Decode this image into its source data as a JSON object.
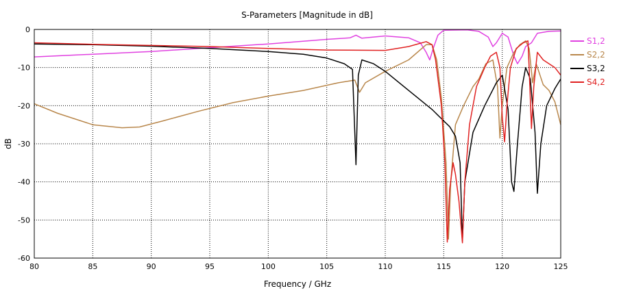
{
  "chart_data": {
    "type": "line",
    "title": "S-Parameters [Magnitude in dB]",
    "xlabel": "Frequency / GHz",
    "ylabel": "dB",
    "xlim": [
      80,
      125
    ],
    "ylim": [
      -60,
      0
    ],
    "xticks": [
      80,
      85,
      90,
      95,
      100,
      105,
      110,
      115,
      120,
      125
    ],
    "yticks": [
      0,
      -10,
      -20,
      -30,
      -40,
      -50,
      -60
    ],
    "grid": true,
    "legend_position": "right",
    "series": [
      {
        "name": "S1,2",
        "color": "#e040e0",
        "points": [
          [
            80,
            -7.2
          ],
          [
            85,
            -6.5
          ],
          [
            90,
            -5.8
          ],
          [
            95,
            -4.8
          ],
          [
            100,
            -3.8
          ],
          [
            105,
            -2.6
          ],
          [
            107,
            -2.2
          ],
          [
            107.5,
            -1.5
          ],
          [
            108,
            -2.3
          ],
          [
            110,
            -1.7
          ],
          [
            112,
            -2.2
          ],
          [
            113,
            -3.5
          ],
          [
            113.5,
            -6
          ],
          [
            113.8,
            -8
          ],
          [
            114.1,
            -5
          ],
          [
            114.5,
            -1.5
          ],
          [
            115,
            -0.2
          ],
          [
            117,
            -0.1
          ],
          [
            118,
            -0.5
          ],
          [
            118.8,
            -2
          ],
          [
            119.2,
            -4.5
          ],
          [
            119.5,
            -3.5
          ],
          [
            120,
            -1
          ],
          [
            120.5,
            -2
          ],
          [
            121,
            -7
          ],
          [
            121.3,
            -9
          ],
          [
            121.7,
            -7
          ],
          [
            122,
            -4.5
          ],
          [
            122.5,
            -3.5
          ],
          [
            123,
            -1
          ],
          [
            124,
            -0.5
          ],
          [
            125,
            -0.4
          ]
        ]
      },
      {
        "name": "S2,2",
        "color": "#b8864a",
        "points": [
          [
            80,
            -19.5
          ],
          [
            82,
            -22
          ],
          [
            85,
            -25
          ],
          [
            87.5,
            -25.8
          ],
          [
            89,
            -25.6
          ],
          [
            91,
            -24
          ],
          [
            94,
            -21.5
          ],
          [
            97,
            -19.2
          ],
          [
            100,
            -17.5
          ],
          [
            103,
            -16
          ],
          [
            106,
            -14
          ],
          [
            107.4,
            -13.3
          ],
          [
            107.8,
            -16.5
          ],
          [
            108.3,
            -14
          ],
          [
            110,
            -11
          ],
          [
            112,
            -8
          ],
          [
            113.5,
            -4
          ],
          [
            114,
            -4
          ],
          [
            114.4,
            -8
          ],
          [
            114.8,
            -18
          ],
          [
            115.2,
            -35
          ],
          [
            115.4,
            -55
          ],
          [
            115.6,
            -40
          ],
          [
            116,
            -25
          ],
          [
            116.7,
            -20
          ],
          [
            117.5,
            -15
          ],
          [
            118,
            -13
          ],
          [
            118.6,
            -9
          ],
          [
            119.2,
            -8
          ],
          [
            119.6,
            -15
          ],
          [
            119.8,
            -28.5
          ],
          [
            120,
            -20
          ],
          [
            120.4,
            -10
          ],
          [
            121,
            -6
          ],
          [
            121.5,
            -4
          ],
          [
            122,
            -3
          ],
          [
            122.3,
            -5
          ],
          [
            122.6,
            -14
          ],
          [
            122.9,
            -9
          ],
          [
            123.5,
            -14.5
          ],
          [
            124,
            -16
          ],
          [
            124.5,
            -19
          ],
          [
            125,
            -25
          ]
        ]
      },
      {
        "name": "S3,2",
        "color": "#000000",
        "points": [
          [
            80,
            -3.8
          ],
          [
            85,
            -4
          ],
          [
            90,
            -4.4
          ],
          [
            95,
            -5
          ],
          [
            100,
            -5.8
          ],
          [
            103,
            -6.5
          ],
          [
            105,
            -7.5
          ],
          [
            106.5,
            -9
          ],
          [
            107.2,
            -10.5
          ],
          [
            107.5,
            -35.5
          ],
          [
            107.7,
            -12
          ],
          [
            108,
            -8
          ],
          [
            109,
            -9
          ],
          [
            110,
            -11
          ],
          [
            112,
            -16
          ],
          [
            114,
            -21
          ],
          [
            115,
            -24
          ],
          [
            115.5,
            -25.5
          ],
          [
            116,
            -28
          ],
          [
            116.4,
            -35
          ],
          [
            116.6,
            -55.5
          ],
          [
            116.8,
            -40
          ],
          [
            117.5,
            -27
          ],
          [
            118.5,
            -20
          ],
          [
            119.5,
            -14
          ],
          [
            120,
            -12
          ],
          [
            120.5,
            -21
          ],
          [
            120.8,
            -40
          ],
          [
            121,
            -42.5
          ],
          [
            121.3,
            -30
          ],
          [
            121.7,
            -15
          ],
          [
            122,
            -10
          ],
          [
            122.4,
            -13
          ],
          [
            122.8,
            -27
          ],
          [
            123,
            -43
          ],
          [
            123.3,
            -30
          ],
          [
            123.8,
            -20
          ],
          [
            124.5,
            -15.5
          ],
          [
            125,
            -13
          ]
        ]
      },
      {
        "name": "S4,2",
        "color": "#e02020",
        "points": [
          [
            80,
            -3.5
          ],
          [
            85,
            -3.9
          ],
          [
            90,
            -4.2
          ],
          [
            95,
            -4.5
          ],
          [
            100,
            -5
          ],
          [
            105,
            -5.4
          ],
          [
            110,
            -5.5
          ],
          [
            112,
            -4.5
          ],
          [
            113.5,
            -3.2
          ],
          [
            114,
            -4
          ],
          [
            114.3,
            -8
          ],
          [
            114.8,
            -20
          ],
          [
            115.1,
            -35
          ],
          [
            115.3,
            -55.8
          ],
          [
            115.5,
            -42
          ],
          [
            115.8,
            -35
          ],
          [
            116,
            -38
          ],
          [
            116.3,
            -45
          ],
          [
            116.6,
            -56
          ],
          [
            116.8,
            -40
          ],
          [
            117.2,
            -25
          ],
          [
            117.8,
            -15
          ],
          [
            118.5,
            -10
          ],
          [
            119,
            -7
          ],
          [
            119.5,
            -6
          ],
          [
            119.8,
            -10
          ],
          [
            120,
            -23
          ],
          [
            120.2,
            -29.5
          ],
          [
            120.4,
            -20
          ],
          [
            120.7,
            -10
          ],
          [
            121.2,
            -5
          ],
          [
            121.8,
            -3.5
          ],
          [
            122.2,
            -3
          ],
          [
            122.3,
            -10
          ],
          [
            122.5,
            -26
          ],
          [
            122.7,
            -15
          ],
          [
            123,
            -6
          ],
          [
            123.5,
            -8
          ],
          [
            124,
            -9
          ],
          [
            124.5,
            -10
          ],
          [
            125,
            -12
          ]
        ]
      }
    ]
  }
}
